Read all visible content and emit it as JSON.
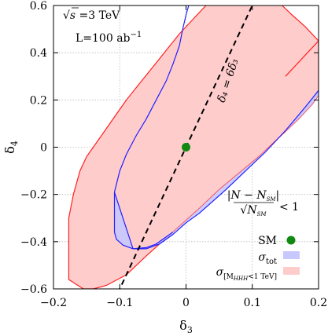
{
  "chart_data": {
    "type": "area",
    "title": "",
    "xlabel": "δ",
    "xlabel_sub": "3",
    "ylabel": "δ",
    "ylabel_sub": "4",
    "xlim": [
      -0.2,
      0.2
    ],
    "ylim": [
      -0.6,
      0.6
    ],
    "grid": true,
    "x_ticks": [
      -0.2,
      -0.1,
      0,
      0.1,
      0.2
    ],
    "x_tick_labels": [
      "−0.2",
      "−0.1",
      "0",
      "0.1",
      "0.2"
    ],
    "y_ticks": [
      -0.6,
      -0.4,
      -0.2,
      0,
      0.2,
      0.4,
      0.6
    ],
    "y_tick_labels": [
      "−0.6",
      "−0.4",
      "−0.2",
      "0",
      "0.2",
      "0.4",
      "0.6"
    ],
    "annotations": {
      "energy_prefix": "√",
      "energy_var": "s",
      "energy_value": " =3 TeV",
      "luminosity_text": "L=100 ab",
      "luminosity_sup": "−1",
      "line_label": "δ₄ = 6δ₃",
      "criterion_num": "|N − N",
      "criterion_num_sub": "SM",
      "criterion_num_end": "|",
      "criterion_den": "√N",
      "criterion_den_sub": "SM",
      "criterion_rel": "< 1"
    },
    "series": [
      {
        "name": "σ",
        "name_sub": "[M",
        "name_sub2": "HHH",
        "name_sub3": "<1 TeV]",
        "kind": "band",
        "fill": "#ffcccc",
        "stroke": "#ff2020",
        "outline": [
          [
            -0.177,
            -0.42
          ],
          [
            -0.177,
            -0.56
          ],
          [
            -0.155,
            -0.6
          ],
          [
            -0.14,
            -0.6
          ],
          [
            -0.12,
            -0.585
          ],
          [
            -0.09,
            -0.54
          ],
          [
            -0.06,
            -0.46
          ],
          [
            -0.04,
            -0.41
          ],
          [
            -0.02,
            -0.36
          ],
          [
            0.0,
            -0.31
          ],
          [
            0.02,
            -0.26
          ],
          [
            0.05,
            -0.18
          ],
          [
            0.08,
            -0.11
          ],
          [
            0.11,
            -0.04
          ],
          [
            0.14,
            0.04
          ],
          [
            0.17,
            0.12
          ],
          [
            0.19,
            0.18
          ],
          [
            0.2,
            0.22
          ],
          [
            0.2,
            0.45
          ],
          [
            0.18,
            0.39
          ],
          [
            0.15,
            0.3
          ],
          [
            0.12,
            0.21
          ],
          [
            0.09,
            0.13
          ],
          [
            0.06,
            0.06
          ],
          [
            0.03,
            -0.01
          ],
          [
            0.0,
            -0.08
          ],
          [
            -0.03,
            -0.14
          ],
          [
            -0.05,
            -0.18
          ],
          [
            -0.07,
            -0.22
          ],
          [
            -0.09,
            -0.26
          ],
          [
            -0.11,
            -0.295
          ],
          [
            -0.13,
            -0.32
          ],
          [
            -0.15,
            -0.35
          ],
          [
            -0.165,
            -0.38
          ],
          [
            -0.177,
            -0.42
          ]
        ],
        "upper_branch": [
          [
            -0.177,
            -0.42
          ],
          [
            -0.177,
            -0.3
          ],
          [
            -0.17,
            -0.2
          ],
          [
            -0.16,
            -0.1
          ],
          [
            -0.15,
            -0.04
          ],
          [
            -0.13,
            0.04
          ],
          [
            -0.11,
            0.12
          ],
          [
            -0.09,
            0.2
          ],
          [
            -0.07,
            0.27
          ],
          [
            -0.05,
            0.34
          ],
          [
            -0.03,
            0.41
          ],
          [
            -0.01,
            0.48
          ],
          [
            0.01,
            0.54
          ],
          [
            0.03,
            0.6
          ]
        ],
        "upper_right_branch": [
          [
            0.2,
            0.45
          ],
          [
            0.18,
            0.51
          ],
          [
            0.16,
            0.56
          ],
          [
            0.145,
            0.6
          ]
        ]
      },
      {
        "name": "σ",
        "name_sub": "tot",
        "kind": "band",
        "fill": "#c8c8ff",
        "stroke": "#2020ff",
        "outline": [
          [
            -0.108,
            -0.19
          ],
          [
            -0.108,
            -0.36
          ],
          [
            -0.105,
            -0.39
          ],
          [
            -0.095,
            -0.415
          ],
          [
            -0.08,
            -0.43
          ],
          [
            -0.06,
            -0.425
          ],
          [
            -0.045,
            -0.41
          ],
          [
            -0.02,
            -0.36
          ],
          [
            0.0,
            -0.31
          ],
          [
            0.02,
            -0.26
          ],
          [
            0.05,
            -0.18
          ],
          [
            0.08,
            -0.11
          ],
          [
            0.11,
            -0.04
          ],
          [
            0.14,
            0.04
          ],
          [
            0.17,
            0.12
          ],
          [
            0.19,
            0.18
          ],
          [
            0.2,
            0.22
          ],
          [
            0.2,
            0.24
          ],
          [
            0.18,
            0.17
          ],
          [
            0.15,
            0.07
          ],
          [
            0.12,
            -0.02
          ],
          [
            0.09,
            -0.1
          ],
          [
            0.06,
            -0.18
          ],
          [
            0.04,
            -0.23
          ],
          [
            0.02,
            -0.28
          ],
          [
            0.0,
            -0.32
          ],
          [
            -0.02,
            -0.37
          ],
          [
            -0.04,
            -0.41
          ],
          [
            -0.06,
            -0.43
          ],
          [
            -0.08,
            -0.43
          ]
        ],
        "upper_branch": [
          [
            -0.108,
            -0.19
          ],
          [
            -0.1,
            -0.1
          ],
          [
            -0.09,
            -0.03
          ],
          [
            -0.075,
            0.05
          ],
          [
            -0.06,
            0.12
          ],
          [
            -0.045,
            0.2
          ],
          [
            -0.03,
            0.28
          ],
          [
            -0.02,
            0.35
          ],
          [
            -0.01,
            0.43
          ],
          [
            -0.005,
            0.5
          ],
          [
            0.0,
            0.56
          ],
          [
            0.004,
            0.6
          ]
        ]
      },
      {
        "name": "SM",
        "kind": "point",
        "x": 0.0,
        "y": 0.0,
        "color": "#118811"
      }
    ],
    "reference_line": {
      "label": "δ₄ = 6δ₃",
      "slope": 6,
      "x_range": [
        -0.103,
        0.1
      ],
      "style": "dashed",
      "color": "#000000"
    },
    "legend_placement": "bottom-right"
  }
}
